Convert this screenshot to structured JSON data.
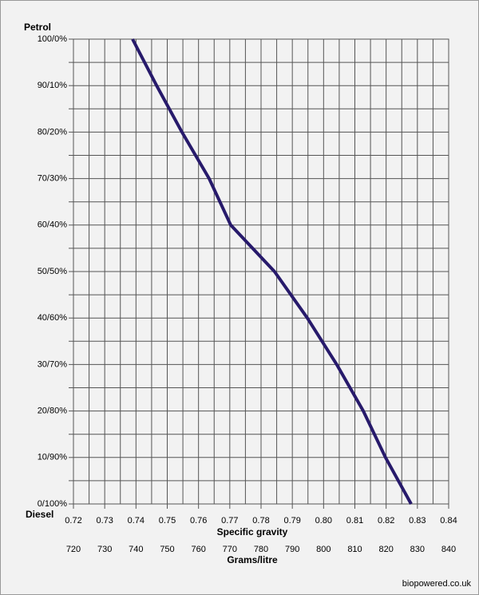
{
  "chart_data": {
    "type": "line",
    "y_top_label": "Petrol",
    "y_bottom_label": "Diesel",
    "xlabel": "Specific gravity",
    "x2label": "Grams/litre",
    "source": "biopowered.co.uk",
    "x": [
      0.7389,
      0.7466,
      0.7547,
      0.7634,
      0.7703,
      0.7843,
      0.7948,
      0.8042,
      0.8127,
      0.8198,
      0.828
    ],
    "series": [
      {
        "color": "#271a6b",
        "values": [
          100,
          90,
          80,
          70,
          60,
          50,
          40,
          30,
          20,
          10,
          0
        ]
      }
    ],
    "xlim": [
      0.72,
      0.84
    ],
    "xticks": [
      0.72,
      0.73,
      0.74,
      0.75,
      0.76,
      0.77,
      0.78,
      0.79,
      {
        "value": 0.8,
        "label": "0.80"
      },
      0.81,
      0.82,
      0.83,
      0.84
    ],
    "x2lim": [
      720,
      840
    ],
    "x2ticks": [
      720,
      730,
      740,
      750,
      760,
      770,
      780,
      790,
      800,
      810,
      820,
      830,
      840
    ],
    "ylim": [
      0,
      100
    ],
    "yticks": [
      {
        "value": 0,
        "label": "0/100%"
      },
      {
        "value": 10,
        "label": "10/90%"
      },
      {
        "value": 20,
        "label": "20/80%"
      },
      {
        "value": 30,
        "label": "30/70%"
      },
      {
        "value": 40,
        "label": "40/60%"
      },
      {
        "value": 50,
        "label": "50/50%"
      },
      {
        "value": 60,
        "label": "60/40%"
      },
      {
        "value": 70,
        "label": "70/30%"
      },
      {
        "value": 80,
        "label": "80/20%"
      },
      {
        "value": 90,
        "label": "90/10%"
      },
      {
        "value": 100,
        "label": "100/0%"
      }
    ],
    "grid": true
  }
}
